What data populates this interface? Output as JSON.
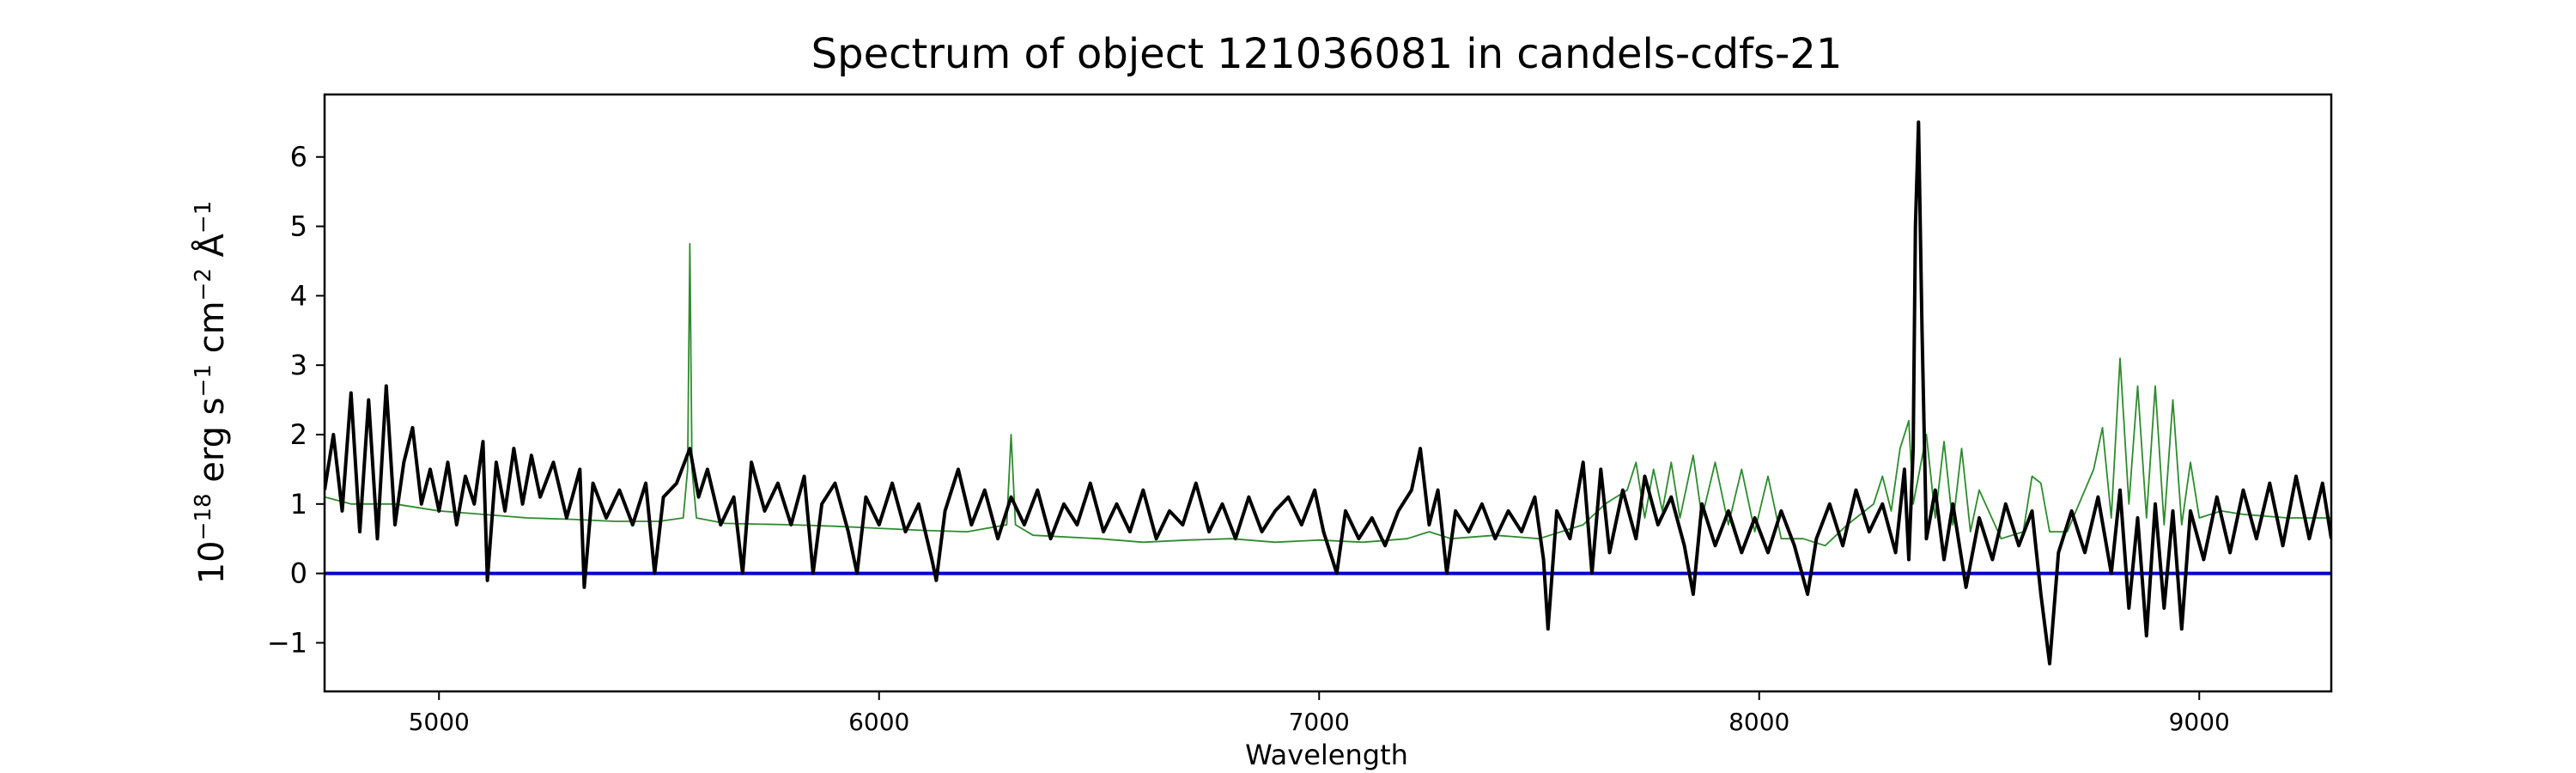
{
  "chart_data": {
    "type": "line",
    "title": "Spectrum of object 121036081 in candels-cdfs-21",
    "xlabel": "Wavelength",
    "ylabel": {
      "base": "10",
      "exp1": "−18",
      "erg": " erg s",
      "exp2": "−1",
      "cm": " cm",
      "exp3": "−2",
      "ang": " Å",
      "exp4": "−1"
    },
    "xlim": [
      4740,
      9300
    ],
    "ylim": [
      -1.7,
      6.9
    ],
    "xticks": [
      5000,
      6000,
      7000,
      8000,
      9000
    ],
    "yticks": [
      -1,
      0,
      1,
      2,
      3,
      4,
      5,
      6
    ],
    "grid": false,
    "legend": false,
    "colors": {
      "spectrum": "#000000",
      "model": "#2e8b2e",
      "zero_line": "#0000cc",
      "axes": "#000000"
    },
    "series": [
      {
        "id": "spectrum",
        "stroke_role": "spectrum",
        "points": [
          [
            4740,
            1.2
          ],
          [
            4760,
            2.0
          ],
          [
            4780,
            0.9
          ],
          [
            4800,
            2.6
          ],
          [
            4820,
            0.6
          ],
          [
            4840,
            2.5
          ],
          [
            4860,
            0.5
          ],
          [
            4880,
            2.7
          ],
          [
            4900,
            0.7
          ],
          [
            4920,
            1.6
          ],
          [
            4940,
            2.1
          ],
          [
            4960,
            1.0
          ],
          [
            4980,
            1.5
          ],
          [
            5000,
            0.9
          ],
          [
            5020,
            1.6
          ],
          [
            5040,
            0.7
          ],
          [
            5060,
            1.4
          ],
          [
            5080,
            1.0
          ],
          [
            5100,
            1.9
          ],
          [
            5110,
            -0.1
          ],
          [
            5130,
            1.6
          ],
          [
            5150,
            0.9
          ],
          [
            5170,
            1.8
          ],
          [
            5190,
            1.0
          ],
          [
            5210,
            1.7
          ],
          [
            5230,
            1.1
          ],
          [
            5260,
            1.6
          ],
          [
            5290,
            0.8
          ],
          [
            5320,
            1.5
          ],
          [
            5330,
            -0.2
          ],
          [
            5350,
            1.3
          ],
          [
            5380,
            0.8
          ],
          [
            5410,
            1.2
          ],
          [
            5440,
            0.7
          ],
          [
            5470,
            1.3
          ],
          [
            5490,
            0.0
          ],
          [
            5510,
            1.1
          ],
          [
            5540,
            1.3
          ],
          [
            5570,
            1.8
          ],
          [
            5590,
            1.1
          ],
          [
            5610,
            1.5
          ],
          [
            5640,
            0.7
          ],
          [
            5670,
            1.1
          ],
          [
            5690,
            0.0
          ],
          [
            5710,
            1.6
          ],
          [
            5740,
            0.9
          ],
          [
            5770,
            1.3
          ],
          [
            5800,
            0.7
          ],
          [
            5830,
            1.4
          ],
          [
            5850,
            0.0
          ],
          [
            5870,
            1.0
          ],
          [
            5900,
            1.3
          ],
          [
            5930,
            0.6
          ],
          [
            5950,
            0.0
          ],
          [
            5970,
            1.1
          ],
          [
            6000,
            0.7
          ],
          [
            6030,
            1.3
          ],
          [
            6060,
            0.6
          ],
          [
            6090,
            1.0
          ],
          [
            6120,
            0.2
          ],
          [
            6130,
            -0.1
          ],
          [
            6150,
            0.9
          ],
          [
            6180,
            1.5
          ],
          [
            6210,
            0.7
          ],
          [
            6240,
            1.2
          ],
          [
            6270,
            0.5
          ],
          [
            6300,
            1.1
          ],
          [
            6330,
            0.7
          ],
          [
            6360,
            1.2
          ],
          [
            6390,
            0.5
          ],
          [
            6420,
            1.0
          ],
          [
            6450,
            0.7
          ],
          [
            6480,
            1.3
          ],
          [
            6510,
            0.6
          ],
          [
            6540,
            1.0
          ],
          [
            6570,
            0.6
          ],
          [
            6600,
            1.2
          ],
          [
            6630,
            0.5
          ],
          [
            6660,
            0.9
          ],
          [
            6690,
            0.7
          ],
          [
            6720,
            1.3
          ],
          [
            6750,
            0.6
          ],
          [
            6780,
            1.0
          ],
          [
            6810,
            0.5
          ],
          [
            6840,
            1.1
          ],
          [
            6870,
            0.6
          ],
          [
            6900,
            0.9
          ],
          [
            6930,
            1.1
          ],
          [
            6960,
            0.7
          ],
          [
            6990,
            1.2
          ],
          [
            7010,
            0.6
          ],
          [
            7040,
            0.0
          ],
          [
            7060,
            0.9
          ],
          [
            7090,
            0.5
          ],
          [
            7120,
            0.8
          ],
          [
            7150,
            0.4
          ],
          [
            7180,
            0.9
          ],
          [
            7210,
            1.2
          ],
          [
            7230,
            1.8
          ],
          [
            7250,
            0.7
          ],
          [
            7270,
            1.2
          ],
          [
            7290,
            0.0
          ],
          [
            7310,
            0.9
          ],
          [
            7340,
            0.6
          ],
          [
            7370,
            1.0
          ],
          [
            7400,
            0.5
          ],
          [
            7430,
            0.9
          ],
          [
            7460,
            0.6
          ],
          [
            7490,
            1.1
          ],
          [
            7510,
            0.2
          ],
          [
            7520,
            -0.8
          ],
          [
            7540,
            0.9
          ],
          [
            7570,
            0.5
          ],
          [
            7600,
            1.6
          ],
          [
            7620,
            0.0
          ],
          [
            7640,
            1.5
          ],
          [
            7660,
            0.3
          ],
          [
            7690,
            1.2
          ],
          [
            7720,
            0.5
          ],
          [
            7740,
            1.4
          ],
          [
            7770,
            0.7
          ],
          [
            7800,
            1.1
          ],
          [
            7830,
            0.4
          ],
          [
            7850,
            -0.3
          ],
          [
            7870,
            1.0
          ],
          [
            7900,
            0.4
          ],
          [
            7930,
            0.9
          ],
          [
            7960,
            0.3
          ],
          [
            7990,
            0.8
          ],
          [
            8020,
            0.3
          ],
          [
            8050,
            0.9
          ],
          [
            8080,
            0.4
          ],
          [
            8110,
            -0.3
          ],
          [
            8130,
            0.5
          ],
          [
            8160,
            1.0
          ],
          [
            8190,
            0.4
          ],
          [
            8220,
            1.2
          ],
          [
            8250,
            0.6
          ],
          [
            8280,
            1.0
          ],
          [
            8310,
            0.3
          ],
          [
            8330,
            1.5
          ],
          [
            8340,
            0.2
          ],
          [
            8350,
            1.8
          ],
          [
            8355,
            5.0
          ],
          [
            8362,
            6.5
          ],
          [
            8370,
            3.5
          ],
          [
            8380,
            0.5
          ],
          [
            8400,
            1.2
          ],
          [
            8420,
            0.2
          ],
          [
            8440,
            1.0
          ],
          [
            8470,
            -0.2
          ],
          [
            8500,
            0.8
          ],
          [
            8530,
            0.2
          ],
          [
            8560,
            1.0
          ],
          [
            8590,
            0.4
          ],
          [
            8620,
            0.9
          ],
          [
            8640,
            -0.3
          ],
          [
            8660,
            -1.3
          ],
          [
            8680,
            0.3
          ],
          [
            8710,
            0.9
          ],
          [
            8740,
            0.3
          ],
          [
            8770,
            1.1
          ],
          [
            8800,
            0.0
          ],
          [
            8820,
            1.2
          ],
          [
            8840,
            -0.5
          ],
          [
            8860,
            0.8
          ],
          [
            8880,
            -0.9
          ],
          [
            8900,
            1.0
          ],
          [
            8920,
            -0.5
          ],
          [
            8940,
            0.9
          ],
          [
            8960,
            -0.8
          ],
          [
            8980,
            0.9
          ],
          [
            9010,
            0.2
          ],
          [
            9040,
            1.1
          ],
          [
            9070,
            0.3
          ],
          [
            9100,
            1.2
          ],
          [
            9130,
            0.5
          ],
          [
            9160,
            1.3
          ],
          [
            9190,
            0.4
          ],
          [
            9220,
            1.4
          ],
          [
            9250,
            0.5
          ],
          [
            9280,
            1.3
          ],
          [
            9300,
            0.5
          ]
        ]
      },
      {
        "id": "model",
        "stroke_role": "model",
        "points": [
          [
            4740,
            1.1
          ],
          [
            4800,
            1.0
          ],
          [
            4900,
            1.0
          ],
          [
            5000,
            0.9
          ],
          [
            5100,
            0.85
          ],
          [
            5200,
            0.8
          ],
          [
            5300,
            0.78
          ],
          [
            5400,
            0.75
          ],
          [
            5500,
            0.75
          ],
          [
            5555,
            0.8
          ],
          [
            5565,
            1.5
          ],
          [
            5570,
            4.75
          ],
          [
            5575,
            1.5
          ],
          [
            5585,
            0.8
          ],
          [
            5650,
            0.72
          ],
          [
            5800,
            0.7
          ],
          [
            5900,
            0.68
          ],
          [
            6000,
            0.65
          ],
          [
            6100,
            0.62
          ],
          [
            6200,
            0.6
          ],
          [
            6290,
            0.7
          ],
          [
            6300,
            2.0
          ],
          [
            6310,
            0.7
          ],
          [
            6350,
            0.55
          ],
          [
            6500,
            0.5
          ],
          [
            6600,
            0.45
          ],
          [
            6700,
            0.48
          ],
          [
            6800,
            0.5
          ],
          [
            6900,
            0.45
          ],
          [
            7000,
            0.48
          ],
          [
            7100,
            0.45
          ],
          [
            7200,
            0.5
          ],
          [
            7250,
            0.6
          ],
          [
            7300,
            0.5
          ],
          [
            7400,
            0.55
          ],
          [
            7500,
            0.5
          ],
          [
            7600,
            0.7
          ],
          [
            7650,
            1.0
          ],
          [
            7700,
            1.2
          ],
          [
            7720,
            1.6
          ],
          [
            7740,
            0.8
          ],
          [
            7760,
            1.5
          ],
          [
            7780,
            0.9
          ],
          [
            7800,
            1.6
          ],
          [
            7820,
            0.8
          ],
          [
            7850,
            1.7
          ],
          [
            7870,
            0.8
          ],
          [
            7900,
            1.6
          ],
          [
            7930,
            0.7
          ],
          [
            7960,
            1.5
          ],
          [
            7990,
            0.6
          ],
          [
            8020,
            1.4
          ],
          [
            8050,
            0.5
          ],
          [
            8100,
            0.5
          ],
          [
            8150,
            0.4
          ],
          [
            8200,
            0.7
          ],
          [
            8260,
            1.0
          ],
          [
            8280,
            1.4
          ],
          [
            8300,
            0.9
          ],
          [
            8320,
            1.8
          ],
          [
            8340,
            2.2
          ],
          [
            8350,
            1.0
          ],
          [
            8380,
            2.0
          ],
          [
            8400,
            0.8
          ],
          [
            8420,
            1.9
          ],
          [
            8440,
            0.7
          ],
          [
            8460,
            1.8
          ],
          [
            8480,
            0.6
          ],
          [
            8500,
            1.2
          ],
          [
            8550,
            0.5
          ],
          [
            8600,
            0.6
          ],
          [
            8620,
            1.4
          ],
          [
            8640,
            1.3
          ],
          [
            8660,
            0.6
          ],
          [
            8700,
            0.6
          ],
          [
            8760,
            1.5
          ],
          [
            8780,
            2.1
          ],
          [
            8800,
            0.8
          ],
          [
            8820,
            3.1
          ],
          [
            8840,
            1.0
          ],
          [
            8860,
            2.7
          ],
          [
            8880,
            0.8
          ],
          [
            8900,
            2.7
          ],
          [
            8920,
            0.7
          ],
          [
            8940,
            2.5
          ],
          [
            8960,
            0.7
          ],
          [
            8980,
            1.6
          ],
          [
            9000,
            0.8
          ],
          [
            9050,
            0.9
          ],
          [
            9100,
            0.85
          ],
          [
            9200,
            0.8
          ],
          [
            9300,
            0.8
          ]
        ]
      }
    ]
  }
}
